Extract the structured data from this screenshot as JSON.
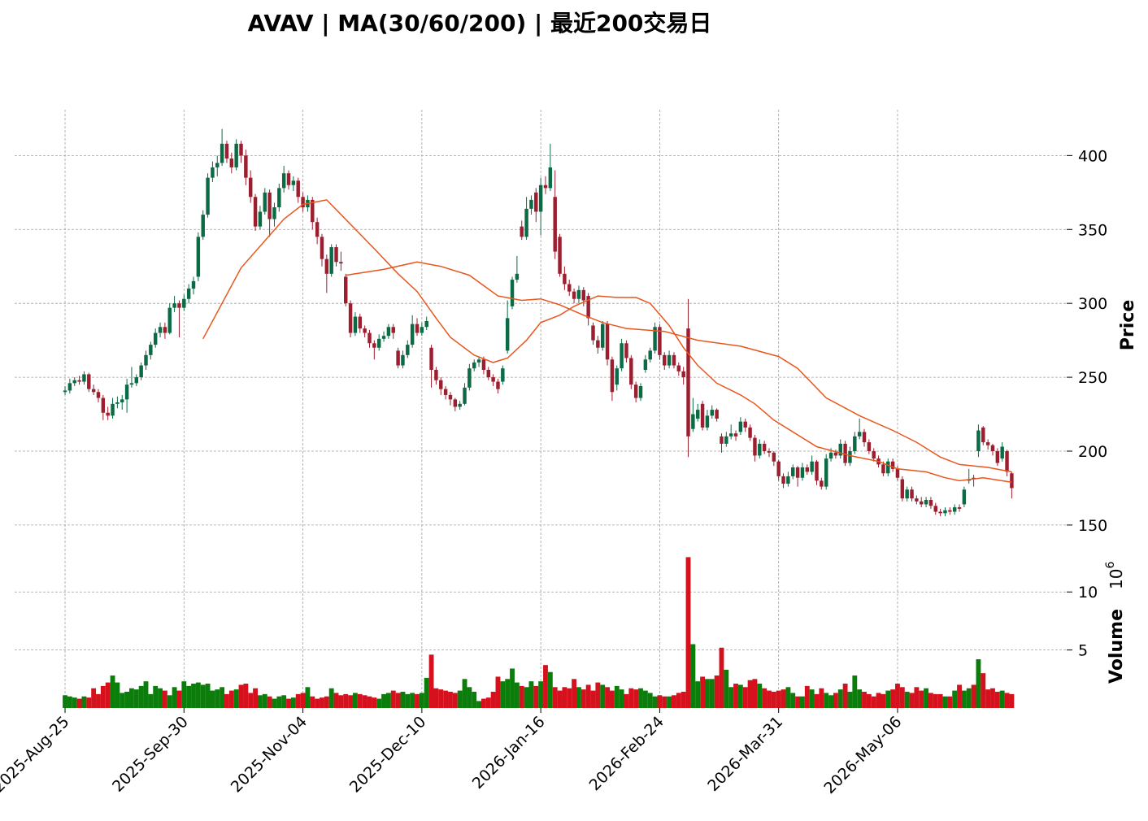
{
  "chart_data": {
    "type": "candlestick",
    "title": "AVAV  |  MA(30/60/200)  |  最近200交易日",
    "ohlc": [
      [
        240,
        244,
        238,
        241
      ],
      [
        241,
        249,
        239,
        246
      ],
      [
        246,
        250,
        244,
        248
      ],
      [
        248,
        251,
        245,
        247
      ],
      [
        247,
        254,
        245,
        252
      ],
      [
        252,
        253,
        240,
        242
      ],
      [
        242,
        245,
        238,
        240
      ],
      [
        240,
        242,
        233,
        236
      ],
      [
        236,
        238,
        221,
        226
      ],
      [
        226,
        230,
        221,
        224
      ],
      [
        224,
        236,
        222,
        232
      ],
      [
        232,
        237,
        229,
        233
      ],
      [
        233,
        238,
        228,
        235
      ],
      [
        235,
        249,
        226,
        245
      ],
      [
        245,
        257,
        243,
        246
      ],
      [
        246,
        252,
        244,
        250
      ],
      [
        250,
        260,
        248,
        258
      ],
      [
        258,
        268,
        255,
        265
      ],
      [
        265,
        274,
        262,
        272
      ],
      [
        272,
        283,
        270,
        280
      ],
      [
        280,
        287,
        277,
        284
      ],
      [
        284,
        287,
        276,
        280
      ],
      [
        280,
        300,
        279,
        297
      ],
      [
        297,
        305,
        294,
        300
      ],
      [
        300,
        302,
        277,
        297
      ],
      [
        297,
        306,
        295,
        303
      ],
      [
        303,
        313,
        300,
        310
      ],
      [
        310,
        318,
        306,
        315
      ],
      [
        318,
        348,
        315,
        345
      ],
      [
        345,
        363,
        343,
        360
      ],
      [
        360,
        388,
        358,
        385
      ],
      [
        385,
        396,
        382,
        392
      ],
      [
        392,
        400,
        386,
        395
      ],
      [
        395,
        418,
        393,
        408
      ],
      [
        408,
        410,
        395,
        398
      ],
      [
        398,
        402,
        388,
        392
      ],
      [
        392,
        411,
        390,
        408
      ],
      [
        408,
        410,
        395,
        400
      ],
      [
        400,
        404,
        380,
        385
      ],
      [
        385,
        390,
        368,
        372
      ],
      [
        372,
        374,
        349,
        352
      ],
      [
        352,
        366,
        350,
        362
      ],
      [
        362,
        378,
        360,
        375
      ],
      [
        375,
        377,
        345,
        357
      ],
      [
        357,
        368,
        352,
        365
      ],
      [
        365,
        381,
        362,
        378
      ],
      [
        378,
        393,
        375,
        388
      ],
      [
        388,
        390,
        377,
        380
      ],
      [
        380,
        386,
        376,
        383
      ],
      [
        383,
        385,
        368,
        372
      ],
      [
        372,
        375,
        362,
        365
      ],
      [
        365,
        373,
        362,
        370
      ],
      [
        370,
        372,
        350,
        355
      ],
      [
        355,
        358,
        340,
        345
      ],
      [
        345,
        347,
        325,
        330
      ],
      [
        330,
        333,
        307,
        320
      ],
      [
        320,
        340,
        318,
        338
      ],
      [
        338,
        340,
        325,
        328
      ],
      [
        328,
        335,
        322,
        327
      ],
      [
        318,
        320,
        298,
        300
      ],
      [
        300,
        302,
        277,
        280
      ],
      [
        280,
        294,
        278,
        291
      ],
      [
        291,
        293,
        280,
        283
      ],
      [
        283,
        285,
        277,
        280
      ],
      [
        280,
        282,
        270,
        273
      ],
      [
        273,
        275,
        262,
        270
      ],
      [
        270,
        279,
        268,
        276
      ],
      [
        276,
        281,
        274,
        278
      ],
      [
        278,
        286,
        276,
        284
      ],
      [
        284,
        286,
        276,
        280
      ],
      [
        268,
        270,
        256,
        258
      ],
      [
        258,
        268,
        256,
        265
      ],
      [
        265,
        275,
        263,
        272
      ],
      [
        272,
        292,
        270,
        286
      ],
      [
        286,
        290,
        278,
        280
      ],
      [
        280,
        287,
        278,
        284
      ],
      [
        284,
        291,
        282,
        288
      ],
      [
        270,
        272,
        243,
        255
      ],
      [
        255,
        257,
        245,
        248
      ],
      [
        248,
        250,
        238,
        242
      ],
      [
        242,
        244,
        235,
        238
      ],
      [
        238,
        240,
        231,
        235
      ],
      [
        235,
        236,
        227,
        230
      ],
      [
        230,
        234,
        228,
        232
      ],
      [
        232,
        246,
        231,
        243
      ],
      [
        243,
        259,
        241,
        256
      ],
      [
        256,
        262,
        254,
        260
      ],
      [
        260,
        264,
        257,
        262
      ],
      [
        262,
        264,
        252,
        255
      ],
      [
        255,
        257,
        248,
        250
      ],
      [
        250,
        252,
        244,
        247
      ],
      [
        247,
        249,
        239,
        242
      ],
      [
        247,
        258,
        245,
        256
      ],
      [
        268,
        302,
        266,
        290
      ],
      [
        298,
        318,
        296,
        316
      ],
      [
        316,
        332,
        314,
        320
      ],
      [
        352,
        356,
        343,
        345
      ],
      [
        345,
        372,
        343,
        364
      ],
      [
        364,
        373,
        360,
        370
      ],
      [
        375,
        378,
        355,
        362
      ],
      [
        362,
        385,
        346,
        380
      ],
      [
        380,
        386,
        374,
        378
      ],
      [
        378,
        408,
        376,
        392
      ],
      [
        372,
        390,
        330,
        335
      ],
      [
        345,
        347,
        318,
        320
      ],
      [
        320,
        325,
        309,
        313
      ],
      [
        313,
        316,
        305,
        308
      ],
      [
        308,
        310,
        300,
        303
      ],
      [
        303,
        312,
        300,
        309
      ],
      [
        309,
        311,
        298,
        302
      ],
      [
        305,
        307,
        285,
        290
      ],
      [
        285,
        287,
        272,
        275
      ],
      [
        275,
        278,
        266,
        270
      ],
      [
        270,
        288,
        268,
        286
      ],
      [
        286,
        288,
        258,
        262
      ],
      [
        262,
        264,
        234,
        240
      ],
      [
        245,
        258,
        241,
        256
      ],
      [
        256,
        276,
        254,
        273
      ],
      [
        273,
        275,
        260,
        263
      ],
      [
        263,
        265,
        242,
        245
      ],
      [
        245,
        247,
        233,
        236
      ],
      [
        236,
        246,
        234,
        244
      ],
      [
        255,
        265,
        253,
        262
      ],
      [
        262,
        270,
        260,
        268
      ],
      [
        268,
        287,
        266,
        284
      ],
      [
        284,
        286,
        262,
        265
      ],
      [
        265,
        267,
        255,
        258
      ],
      [
        258,
        268,
        256,
        265
      ],
      [
        265,
        267,
        256,
        258
      ],
      [
        258,
        260,
        251,
        254
      ],
      [
        254,
        257,
        245,
        250
      ],
      [
        283,
        303,
        196,
        210
      ],
      [
        215,
        236,
        213,
        225
      ],
      [
        222,
        232,
        220,
        228
      ],
      [
        232,
        234,
        214,
        216
      ],
      [
        216,
        228,
        214,
        224
      ],
      [
        224,
        231,
        222,
        228
      ],
      [
        228,
        229,
        220,
        222
      ],
      [
        210,
        212,
        199,
        205
      ],
      [
        205,
        213,
        203,
        210
      ],
      [
        210,
        218,
        208,
        212
      ],
      [
        212,
        214,
        207,
        210
      ],
      [
        213,
        223,
        211,
        220
      ],
      [
        220,
        222,
        213,
        216
      ],
      [
        216,
        218,
        207,
        209
      ],
      [
        209,
        211,
        193,
        197
      ],
      [
        197,
        208,
        195,
        205
      ],
      [
        205,
        207,
        198,
        200
      ],
      [
        200,
        202,
        196,
        199
      ],
      [
        199,
        200,
        190,
        193
      ],
      [
        193,
        194,
        180,
        183
      ],
      [
        183,
        185,
        175,
        178
      ],
      [
        178,
        186,
        176,
        183
      ],
      [
        183,
        191,
        181,
        189
      ],
      [
        189,
        190,
        176,
        182
      ],
      [
        182,
        192,
        180,
        189
      ],
      [
        189,
        191,
        184,
        186
      ],
      [
        186,
        197,
        184,
        193
      ],
      [
        193,
        194,
        177,
        180
      ],
      [
        180,
        182,
        174,
        176
      ],
      [
        176,
        198,
        174,
        195
      ],
      [
        195,
        202,
        193,
        199
      ],
      [
        199,
        201,
        195,
        197
      ],
      [
        197,
        208,
        195,
        205
      ],
      [
        205,
        207,
        190,
        192
      ],
      [
        192,
        203,
        190,
        200
      ],
      [
        200,
        213,
        198,
        210
      ],
      [
        210,
        222,
        208,
        213
      ],
      [
        213,
        215,
        203,
        206
      ],
      [
        206,
        208,
        198,
        200
      ],
      [
        200,
        202,
        193,
        195
      ],
      [
        195,
        197,
        189,
        191
      ],
      [
        191,
        193,
        183,
        185
      ],
      [
        185,
        195,
        183,
        193
      ],
      [
        193,
        195,
        186,
        188
      ],
      [
        188,
        190,
        180,
        182
      ],
      [
        181,
        183,
        166,
        168
      ],
      [
        168,
        176,
        166,
        174
      ],
      [
        174,
        176,
        166,
        168
      ],
      [
        168,
        170,
        164,
        166
      ],
      [
        166,
        169,
        162,
        164
      ],
      [
        164,
        169,
        162,
        167
      ],
      [
        167,
        169,
        161,
        163
      ],
      [
        163,
        165,
        157,
        159
      ],
      [
        159,
        161,
        156,
        158
      ],
      [
        158,
        162,
        156,
        160
      ],
      [
        160,
        162,
        157,
        159
      ],
      [
        159,
        164,
        157,
        162
      ],
      [
        162,
        164,
        159,
        161
      ],
      [
        164,
        176,
        162,
        174
      ],
      [
        180,
        188,
        178,
        181
      ],
      [
        182,
        184,
        176,
        181
      ],
      [
        200,
        218,
        196,
        214
      ],
      [
        216,
        217,
        204,
        206
      ],
      [
        206,
        208,
        201,
        204
      ],
      [
        204,
        205,
        197,
        200
      ],
      [
        200,
        202,
        190,
        192
      ],
      [
        195,
        206,
        193,
        203
      ],
      [
        200,
        201,
        183,
        186
      ],
      [
        185,
        186,
        168,
        175
      ]
    ],
    "volume": [
      1.1,
      1.0,
      0.9,
      0.8,
      1.0,
      0.9,
      1.7,
      1.2,
      1.9,
      2.2,
      2.8,
      2.2,
      1.3,
      1.4,
      1.7,
      1.6,
      1.9,
      2.3,
      1.2,
      1.9,
      1.7,
      1.5,
      1.1,
      1.8,
      1.5,
      2.3,
      1.9,
      2.1,
      2.2,
      2.0,
      2.1,
      1.5,
      1.6,
      1.8,
      1.2,
      1.5,
      1.6,
      2.0,
      2.1,
      1.3,
      1.7,
      1.1,
      1.2,
      1.0,
      0.8,
      1.0,
      1.1,
      0.8,
      0.9,
      1.2,
      1.3,
      1.8,
      1.0,
      0.8,
      0.9,
      1.0,
      1.7,
      1.3,
      1.1,
      1.2,
      1.1,
      1.3,
      1.2,
      1.1,
      1.0,
      0.9,
      0.8,
      1.2,
      1.3,
      1.5,
      1.3,
      1.4,
      1.2,
      1.3,
      1.2,
      1.3,
      2.6,
      4.6,
      1.7,
      1.6,
      1.5,
      1.4,
      1.3,
      1.5,
      2.5,
      1.8,
      1.4,
      0.6,
      0.8,
      0.9,
      1.4,
      2.7,
      2.3,
      2.5,
      3.4,
      2.2,
      1.9,
      1.8,
      2.3,
      1.9,
      2.3,
      3.7,
      3.1,
      1.8,
      1.5,
      1.8,
      1.7,
      2.5,
      1.8,
      1.6,
      2.0,
      1.5,
      2.2,
      2.0,
      1.8,
      1.5,
      1.9,
      1.6,
      1.2,
      1.7,
      1.6,
      1.7,
      1.5,
      1.3,
      1.0,
      1.1,
      1.0,
      1.0,
      1.1,
      1.3,
      1.4,
      13.0,
      5.5,
      2.3,
      2.7,
      2.5,
      2.5,
      2.8,
      5.2,
      3.3,
      1.8,
      2.1,
      2.0,
      1.8,
      2.4,
      2.5,
      2.1,
      1.7,
      1.5,
      1.4,
      1.5,
      1.6,
      1.8,
      1.3,
      1.0,
      1.0,
      1.9,
      1.6,
      1.2,
      1.7,
      1.3,
      1.1,
      1.3,
      1.6,
      2.1,
      1.4,
      2.8,
      1.6,
      1.4,
      1.2,
      1.0,
      1.3,
      1.2,
      1.5,
      1.6,
      2.1,
      1.8,
      1.4,
      1.3,
      1.8,
      1.5,
      1.7,
      1.3,
      1.2,
      1.2,
      1.0,
      1.0,
      1.5,
      2.0,
      1.5,
      1.7,
      2.0,
      4.2,
      3.0,
      1.6,
      1.7,
      1.4,
      1.5,
      1.3,
      1.2
    ],
    "up_color": "#0b6b45",
    "down_color": "#9b1f2e",
    "volume_up_color": "#0a7d0a",
    "volume_down_color": "#d4111c",
    "ma_color": "#e8561c",
    "ma": [
      {
        "x": [
          29,
          37,
          46,
          50,
          55,
          65,
          70,
          74,
          78,
          81,
          86,
          90,
          93,
          97,
          100,
          104,
          107,
          112,
          116,
          120,
          123,
          127,
          130,
          133,
          137,
          142,
          145,
          149,
          158,
          165,
          171,
          175,
          181,
          185,
          188,
          193,
          199
        ],
        "values": [
          276,
          324,
          357,
          367,
          370,
          337,
          320,
          308,
          290,
          277,
          265,
          260,
          263,
          275,
          287,
          292,
          298,
          305,
          304,
          304,
          300,
          285,
          270,
          258,
          246,
          238,
          232,
          221,
          203,
          197,
          193,
          188,
          186,
          182,
          180,
          182,
          179
        ]
      },
      {
        "x": [
          59,
          67,
          74,
          79,
          85,
          88,
          91,
          96,
          100,
          104,
          109,
          113,
          118,
          126,
          133,
          142,
          150,
          154,
          160,
          167,
          174,
          179,
          184,
          188,
          194,
          199
        ],
        "values": [
          319,
          323,
          328,
          325,
          319,
          312,
          305,
          302,
          303,
          299,
          292,
          287,
          283,
          281,
          275,
          271,
          264,
          256,
          236,
          224,
          214,
          206,
          196,
          191,
          189,
          186
        ]
      }
    ],
    "xlim": [
      -10.6,
      200.3
    ],
    "xticks": [
      {
        "value": 0,
        "label": "2025-Aug-25"
      },
      {
        "value": 25,
        "label": "2025-Sep-30"
      },
      {
        "value": 50,
        "label": "2025-Nov-04"
      },
      {
        "value": 75,
        "label": "2025-Dec-10"
      },
      {
        "value": 100,
        "label": "2026-Jan-16"
      },
      {
        "value": 125,
        "label": "2026-Feb-24"
      },
      {
        "value": 150,
        "label": "2026-Mar-31"
      },
      {
        "value": 175,
        "label": "2026-May-06"
      }
    ],
    "ylim": [
      145,
      431
    ],
    "yticks": [
      150,
      200,
      250,
      300,
      350,
      400
    ],
    "ylabel": "Price",
    "volume_ylim": [
      0,
      14.85
    ],
    "volume_yticks": [
      5,
      10
    ],
    "volume_ylabel": "Volume",
    "volume_scale": {
      "base": "10",
      "exponent": "6"
    },
    "grid": true
  }
}
